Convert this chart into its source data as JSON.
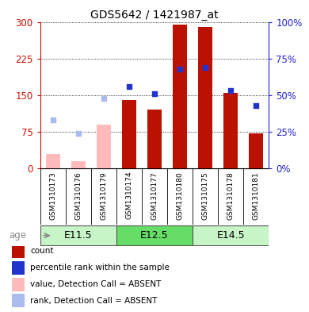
{
  "title": "GDS5642 / 1421987_at",
  "samples": [
    "GSM1310173",
    "GSM1310176",
    "GSM1310179",
    "GSM1310174",
    "GSM1310177",
    "GSM1310180",
    "GSM1310175",
    "GSM1310178",
    "GSM1310181"
  ],
  "absent_mask": [
    true,
    true,
    true,
    false,
    false,
    false,
    false,
    false,
    false
  ],
  "bar_values": [
    30,
    15,
    90,
    140,
    120,
    295,
    290,
    155,
    72
  ],
  "rank_values": [
    33,
    24,
    48,
    56,
    51,
    68,
    69,
    53,
    43
  ],
  "age_groups": [
    {
      "label": "E11.5",
      "start": 0,
      "end": 3,
      "color": "#c8f5c8"
    },
    {
      "label": "E12.5",
      "start": 3,
      "end": 6,
      "color": "#66dd66"
    },
    {
      "label": "E14.5",
      "start": 6,
      "end": 9,
      "color": "#c8f5c8"
    }
  ],
  "ylim_left": [
    0,
    300
  ],
  "ylim_right": [
    0,
    100
  ],
  "yticks_left": [
    0,
    75,
    150,
    225,
    300
  ],
  "yticks_right": [
    0,
    25,
    50,
    75,
    100
  ],
  "ytick_labels_left": [
    "0",
    "75",
    "150",
    "225",
    "300"
  ],
  "ytick_labels_right": [
    "0%",
    "25%",
    "50%",
    "75%",
    "100%"
  ],
  "bar_color_present": "#bb1100",
  "bar_color_absent": "#ffbbbb",
  "rank_color_present": "#2233cc",
  "rank_color_absent": "#aabbee",
  "legend_items": [
    {
      "color": "#bb1100",
      "label": "count",
      "marker": "square"
    },
    {
      "color": "#2233cc",
      "label": "percentile rank within the sample",
      "marker": "square"
    },
    {
      "color": "#ffbbbb",
      "label": "value, Detection Call = ABSENT",
      "marker": "square"
    },
    {
      "color": "#aabbee",
      "label": "rank, Detection Call = ABSENT",
      "marker": "square"
    }
  ],
  "left_axis_color": "#cc1100",
  "right_axis_color": "#2222cc",
  "bar_width": 0.55,
  "age_label_color": "#888888"
}
